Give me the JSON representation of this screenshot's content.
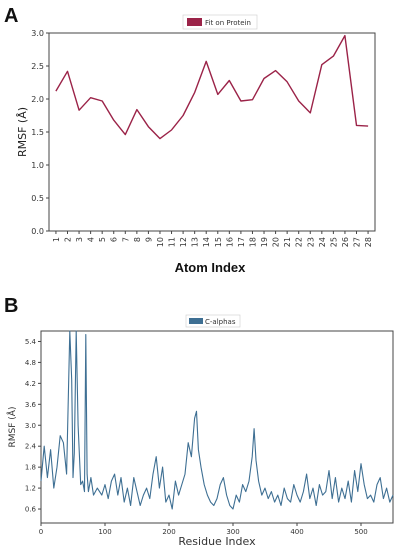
{
  "chart_data": [
    {
      "panel": "A",
      "type": "line",
      "xlabel": "Atom Index",
      "ylabel": "RMSF (Å)",
      "legend": "top-center",
      "ylim": [
        0.0,
        3.0
      ],
      "yticks": [
        "0.0",
        "0.5",
        "1.0",
        "1.5",
        "2.0",
        "2.5",
        "3.0"
      ],
      "categories": [
        "1",
        "2",
        "3",
        "4",
        "5",
        "6",
        "7",
        "8",
        "9",
        "10",
        "11",
        "12",
        "13",
        "14",
        "15",
        "16",
        "17",
        "18",
        "19",
        "20",
        "21",
        "22",
        "23",
        "24",
        "25",
        "26",
        "27",
        "28"
      ],
      "series": [
        {
          "name": "Fit on Protein",
          "color": "#9b2348",
          "values": [
            2.12,
            2.42,
            1.83,
            2.02,
            1.97,
            1.68,
            1.46,
            1.84,
            1.58,
            1.4,
            1.53,
            1.75,
            2.1,
            2.57,
            2.07,
            2.28,
            1.97,
            1.99,
            2.31,
            2.43,
            2.26,
            1.97,
            1.79,
            2.52,
            2.65,
            2.96,
            1.6,
            1.59
          ]
        }
      ]
    },
    {
      "panel": "B",
      "type": "line",
      "xlabel": "Residue Index",
      "ylabel": "RMSF (Å)",
      "legend": "top-center",
      "xlim": [
        0,
        550
      ],
      "ylim": [
        0.2,
        5.7
      ],
      "xticks": [
        "0",
        "100",
        "200",
        "300",
        "400",
        "500"
      ],
      "yticks": [
        "0.6",
        "1.2",
        "1.8",
        "2.4",
        "3.0",
        "3.6",
        "4.2",
        "4.8",
        "5.4"
      ],
      "series": [
        {
          "name": "C-alphas",
          "color": "#3e6f93",
          "x": [
            0,
            5,
            10,
            15,
            20,
            25,
            30,
            35,
            40,
            45,
            48,
            50,
            52,
            55,
            58,
            62,
            65,
            68,
            70,
            72,
            74,
            78,
            82,
            88,
            95,
            100,
            105,
            110,
            115,
            120,
            125,
            130,
            135,
            140,
            145,
            150,
            155,
            160,
            165,
            170,
            175,
            180,
            185,
            190,
            195,
            200,
            205,
            210,
            215,
            220,
            225,
            230,
            235,
            240,
            243,
            246,
            250,
            255,
            260,
            265,
            270,
            275,
            280,
            285,
            290,
            295,
            300,
            305,
            310,
            315,
            320,
            325,
            330,
            333,
            336,
            340,
            345,
            350,
            355,
            360,
            365,
            370,
            375,
            380,
            385,
            390,
            395,
            400,
            405,
            410,
            415,
            420,
            425,
            430,
            435,
            440,
            445,
            450,
            455,
            460,
            465,
            470,
            475,
            480,
            485,
            490,
            495,
            500,
            505,
            510,
            515,
            520,
            525,
            530,
            535,
            540,
            545,
            550
          ],
          "values": [
            1.4,
            2.4,
            1.5,
            2.3,
            1.2,
            1.8,
            2.7,
            2.5,
            1.6,
            5.7,
            4.3,
            1.5,
            2.2,
            5.7,
            3.0,
            1.3,
            1.4,
            1.1,
            5.6,
            1.6,
            1.1,
            1.5,
            1.0,
            1.2,
            1.0,
            1.3,
            0.9,
            1.4,
            1.6,
            1.0,
            1.5,
            0.8,
            1.2,
            0.7,
            1.5,
            1.1,
            0.7,
            1.0,
            1.2,
            0.9,
            1.6,
            2.1,
            1.2,
            1.8,
            0.8,
            1.0,
            0.6,
            1.4,
            1.0,
            1.3,
            1.6,
            2.5,
            2.1,
            3.2,
            3.4,
            2.3,
            1.8,
            1.3,
            1.0,
            0.8,
            0.7,
            0.9,
            1.3,
            1.5,
            1.0,
            0.7,
            0.6,
            1.0,
            0.8,
            1.3,
            1.1,
            1.4,
            2.1,
            2.9,
            2.0,
            1.4,
            1.0,
            1.2,
            0.9,
            1.1,
            0.8,
            1.0,
            0.7,
            1.2,
            0.9,
            0.8,
            1.3,
            1.0,
            0.8,
            1.1,
            1.6,
            0.9,
            1.2,
            0.7,
            1.3,
            1.0,
            1.1,
            1.7,
            0.9,
            1.5,
            0.8,
            1.2,
            0.9,
            1.4,
            0.8,
            1.7,
            1.1,
            1.9,
            1.3,
            0.9,
            1.0,
            0.8,
            1.3,
            1.5,
            0.9,
            1.2,
            0.8,
            1.0
          ]
        }
      ]
    }
  ]
}
